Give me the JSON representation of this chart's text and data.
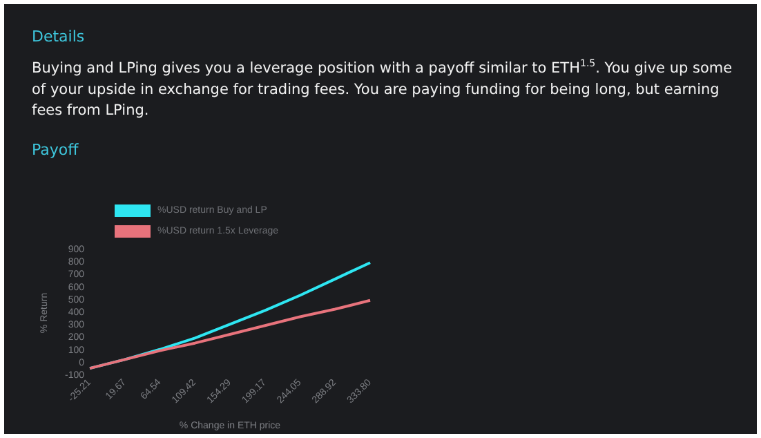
{
  "chart_data": {
    "type": "line",
    "title": "Details",
    "subtitle": "Buying and LPing gives you a leverage position with a payoff similar to ETH$^{1.5}$. You give up some of your upside in exchange for trading fees. You are paying funding for being long, but earning fees from LPing.",
    "annotations": [
      "Payoff"
    ],
    "xlabel": "% Change in ETH price",
    "ylabel": "% Return",
    "categories": [
      "-25.21",
      "19.67",
      "64.54",
      "109.42",
      "154.29",
      "199.17",
      "244.05",
      "288.92",
      "333.80"
    ],
    "series": [
      {
        "name": "%USD return Buy and LP",
        "color": "#2ee6f2",
        "values": [
          -40,
          30,
          110,
          200,
          310,
          420,
          540,
          670,
          800
        ]
      },
      {
        "name": "%USD return 1.5x Leverage",
        "color": "#e8737c",
        "values": [
          -40,
          30,
          100,
          160,
          230,
          300,
          370,
          430,
          500
        ]
      }
    ],
    "ylim": [
      -100,
      900
    ],
    "yticks": [
      -100,
      0,
      100,
      200,
      300,
      400,
      500,
      600,
      700,
      800,
      900
    ],
    "legend": "top",
    "marker": "none",
    "grid": false
  }
}
